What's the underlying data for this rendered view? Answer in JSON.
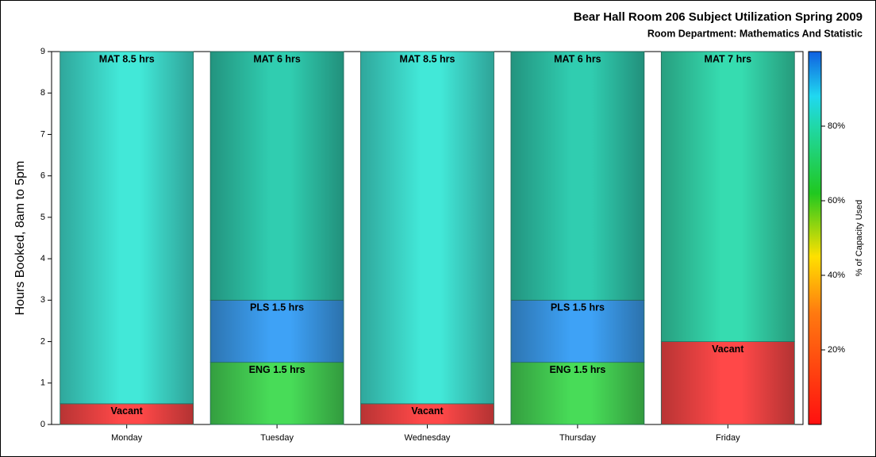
{
  "chart_data": {
    "type": "stacked-bar",
    "title": "Bear Hall Room 206 Subject Utilization Spring 2009",
    "subtitle": "Room Department:  Mathematics And Statistic",
    "y_label": "Hours Booked, 8am to 5pm",
    "colorbar_label": "% of Capacity Used",
    "categories": [
      "Monday",
      "Tuesday",
      "Wednesday",
      "Thursday",
      "Friday"
    ],
    "series": [
      {
        "values": [
          0.5,
          null,
          0.5,
          null,
          2
        ],
        "value_labels": [
          "Vacant",
          null,
          "Vacant",
          null,
          "Vacant"
        ],
        "colors": [
          "#ff4848",
          null,
          "#ff4848",
          null,
          "#ff4848"
        ]
      },
      {
        "values": [
          null,
          1.5,
          null,
          1.5,
          null
        ],
        "value_labels": [
          null,
          "ENG 1.5 hrs",
          null,
          "ENG 1.5 hrs",
          null
        ],
        "colors": [
          null,
          "#48dc58",
          null,
          "#48dc58",
          null
        ]
      },
      {
        "values": [
          null,
          1.5,
          null,
          1.5,
          null
        ],
        "value_labels": [
          null,
          "PLS 1.5 hrs",
          null,
          "PLS 1.5 hrs",
          null
        ],
        "colors": [
          null,
          "#3ea2f6",
          null,
          "#3ea2f6",
          null
        ]
      },
      {
        "values": [
          8.5,
          6,
          8.5,
          6,
          7
        ],
        "value_labels": [
          "MAT 8.5 hrs",
          "MAT 6 hrs",
          "MAT 8.5 hrs",
          "MAT 6 hrs",
          "MAT 7 hrs"
        ],
        "colors": [
          "#42e8d8",
          "#30cdb0",
          "#42e8d8",
          "#30cdb0",
          "#36dcb0"
        ]
      }
    ],
    "ylim": [
      0,
      9
    ],
    "yticks": [
      0,
      1,
      2,
      3,
      4,
      5,
      6,
      7,
      8,
      9
    ],
    "colorbar_lim": [
      0,
      100
    ],
    "colorbar_ticks": [
      {
        "value": 20,
        "label": "20%"
      },
      {
        "value": 40,
        "label": "40%"
      },
      {
        "value": 60,
        "label": "60%"
      },
      {
        "value": 80,
        "label": "80%"
      }
    ]
  }
}
